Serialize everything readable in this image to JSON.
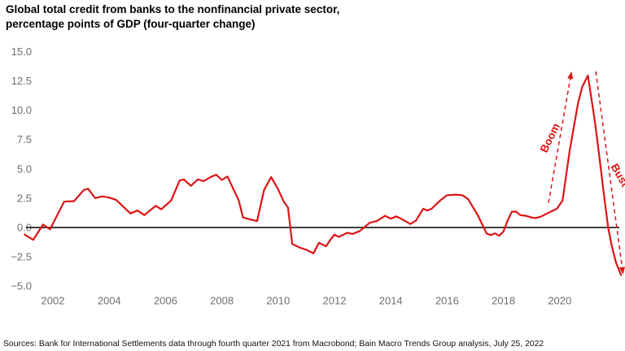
{
  "title": {
    "line1": "Global total credit from banks to the nonfinancial private sector,",
    "line2": "percentage points of GDP (four-quarter change)"
  },
  "source_note": "Sources: Bank for International Settlements data through fourth quarter 2021 from Macrobond; Bain Macro Trends Group analysis, July 25, 2022",
  "colors": {
    "line": "#dc1414",
    "annotation": "#dc1414",
    "axis_text": "#6f6f6f",
    "zero_line": "#000000",
    "title_text": "#000000"
  },
  "chart_data": {
    "type": "line",
    "title": "Global total credit from banks to the nonfinancial private sector, percentage points of GDP (four-quarter change)",
    "xlabel": "",
    "ylabel": "percentage points of GDP (four-quarter change)",
    "xlim": [
      2001.0,
      2022.3
    ],
    "ylim": [
      -5.0,
      15.0
    ],
    "grid": false,
    "zero_line": true,
    "legend": "none",
    "y_ticks": [
      {
        "label": "15.0",
        "value": 15.0
      },
      {
        "label": "12.5",
        "value": 12.5
      },
      {
        "label": "10.0",
        "value": 10.0
      },
      {
        "label": "7.5",
        "value": 7.5
      },
      {
        "label": "5.0",
        "value": 5.0
      },
      {
        "label": "2.5",
        "value": 2.5
      },
      {
        "label": "0.0",
        "value": 0.0
      },
      {
        "label": "−2.5",
        "value": -2.5
      },
      {
        "label": "−5.0",
        "value": -5.0
      }
    ],
    "x_ticks": [
      {
        "label": "2002",
        "value": 2002
      },
      {
        "label": "2004",
        "value": 2004
      },
      {
        "label": "2006",
        "value": 2006
      },
      {
        "label": "2008",
        "value": 2008
      },
      {
        "label": "2010",
        "value": 2010
      },
      {
        "label": "2012",
        "value": 2012
      },
      {
        "label": "2014",
        "value": 2014
      },
      {
        "label": "2016",
        "value": 2016
      },
      {
        "label": "2018",
        "value": 2018
      },
      {
        "label": "2020",
        "value": 2020
      }
    ],
    "series": [
      {
        "name": "Global total credit from banks to the nonfinancial private sector (four-quarter change, percentage points of GDP)",
        "points": [
          [
            2001.0,
            -0.6
          ],
          [
            2001.3,
            -1.05
          ],
          [
            2001.65,
            0.25
          ],
          [
            2001.9,
            -0.15
          ],
          [
            2002.4,
            2.2
          ],
          [
            2002.75,
            2.25
          ],
          [
            2003.1,
            3.2
          ],
          [
            2003.25,
            3.3
          ],
          [
            2003.5,
            2.5
          ],
          [
            2003.75,
            2.65
          ],
          [
            2004.0,
            2.55
          ],
          [
            2004.25,
            2.35
          ],
          [
            2004.75,
            1.2
          ],
          [
            2005.0,
            1.45
          ],
          [
            2005.25,
            1.05
          ],
          [
            2005.65,
            1.85
          ],
          [
            2005.85,
            1.55
          ],
          [
            2006.2,
            2.3
          ],
          [
            2006.5,
            4.0
          ],
          [
            2006.65,
            4.1
          ],
          [
            2006.9,
            3.55
          ],
          [
            2007.15,
            4.1
          ],
          [
            2007.35,
            3.95
          ],
          [
            2007.6,
            4.3
          ],
          [
            2007.8,
            4.5
          ],
          [
            2008.0,
            4.05
          ],
          [
            2008.2,
            4.35
          ],
          [
            2008.6,
            2.3
          ],
          [
            2008.75,
            0.85
          ],
          [
            2009.0,
            0.7
          ],
          [
            2009.25,
            0.55
          ],
          [
            2009.5,
            3.2
          ],
          [
            2009.75,
            4.3
          ],
          [
            2010.0,
            3.25
          ],
          [
            2010.2,
            2.2
          ],
          [
            2010.35,
            1.7
          ],
          [
            2010.5,
            -1.4
          ],
          [
            2010.75,
            -1.7
          ],
          [
            2011.0,
            -1.9
          ],
          [
            2011.25,
            -2.2
          ],
          [
            2011.45,
            -1.3
          ],
          [
            2011.7,
            -1.6
          ],
          [
            2011.9,
            -0.9
          ],
          [
            2012.0,
            -0.6
          ],
          [
            2012.15,
            -0.8
          ],
          [
            2012.45,
            -0.45
          ],
          [
            2012.65,
            -0.55
          ],
          [
            2012.9,
            -0.3
          ],
          [
            2013.05,
            0.0
          ],
          [
            2013.25,
            0.4
          ],
          [
            2013.5,
            0.55
          ],
          [
            2013.8,
            1.0
          ],
          [
            2014.0,
            0.75
          ],
          [
            2014.2,
            0.95
          ],
          [
            2014.4,
            0.7
          ],
          [
            2014.7,
            0.3
          ],
          [
            2014.9,
            0.6
          ],
          [
            2015.15,
            1.6
          ],
          [
            2015.3,
            1.45
          ],
          [
            2015.45,
            1.6
          ],
          [
            2015.75,
            2.3
          ],
          [
            2016.0,
            2.75
          ],
          [
            2016.3,
            2.8
          ],
          [
            2016.55,
            2.75
          ],
          [
            2016.75,
            2.4
          ],
          [
            2017.1,
            1.0
          ],
          [
            2017.4,
            -0.5
          ],
          [
            2017.55,
            -0.65
          ],
          [
            2017.7,
            -0.5
          ],
          [
            2017.85,
            -0.7
          ],
          [
            2018.0,
            -0.35
          ],
          [
            2018.15,
            0.6
          ],
          [
            2018.3,
            1.35
          ],
          [
            2018.45,
            1.35
          ],
          [
            2018.6,
            1.05
          ],
          [
            2018.8,
            1.0
          ],
          [
            2019.0,
            0.85
          ],
          [
            2019.15,
            0.8
          ],
          [
            2019.35,
            0.95
          ],
          [
            2019.6,
            1.25
          ],
          [
            2019.9,
            1.6
          ],
          [
            2020.1,
            2.3
          ],
          [
            2020.35,
            6.5
          ],
          [
            2020.65,
            10.6
          ],
          [
            2020.8,
            12.0
          ],
          [
            2021.0,
            12.95
          ],
          [
            2021.25,
            9.0
          ],
          [
            2021.4,
            6.2
          ],
          [
            2021.55,
            3.2
          ],
          [
            2021.72,
            0.0
          ],
          [
            2021.85,
            -1.6
          ],
          [
            2022.0,
            -3.0
          ],
          [
            2022.18,
            -4.05
          ]
        ]
      }
    ],
    "annotations": [
      {
        "text": "Boom",
        "type": "dashed-arrow",
        "from": [
          2019.6,
          2.1
        ],
        "to": [
          2020.42,
          13.3
        ],
        "label_pos": [
          2019.77,
          7.5
        ],
        "label_rotation_deg": -64
      },
      {
        "text": "Bust",
        "type": "dashed-arrow",
        "from": [
          2021.28,
          13.3
        ],
        "to": [
          2022.25,
          -4.0
        ],
        "label_pos": [
          2022.02,
          4.3
        ],
        "label_rotation_deg": 60
      }
    ]
  }
}
